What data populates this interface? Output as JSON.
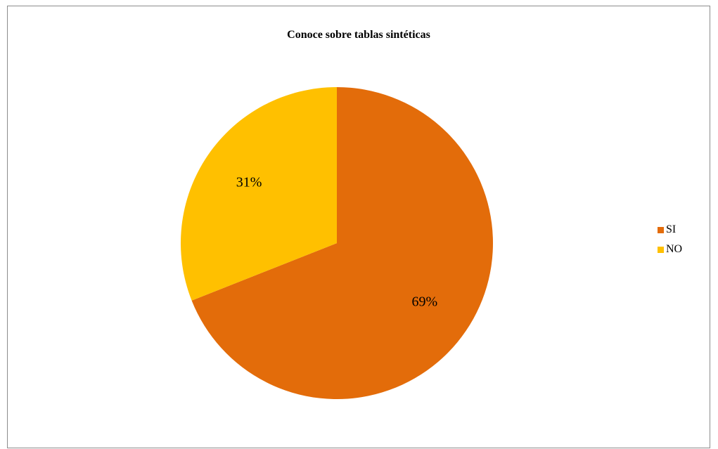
{
  "chart_data": {
    "type": "pie",
    "title": "Conoce sobre tablas sintéticas",
    "categories": [
      "SI",
      "NO"
    ],
    "values": [
      69,
      31
    ],
    "labels": [
      "69%",
      "31%"
    ],
    "colors": [
      "#E36C0A",
      "#FFC000"
    ],
    "legend_placement": "right"
  }
}
